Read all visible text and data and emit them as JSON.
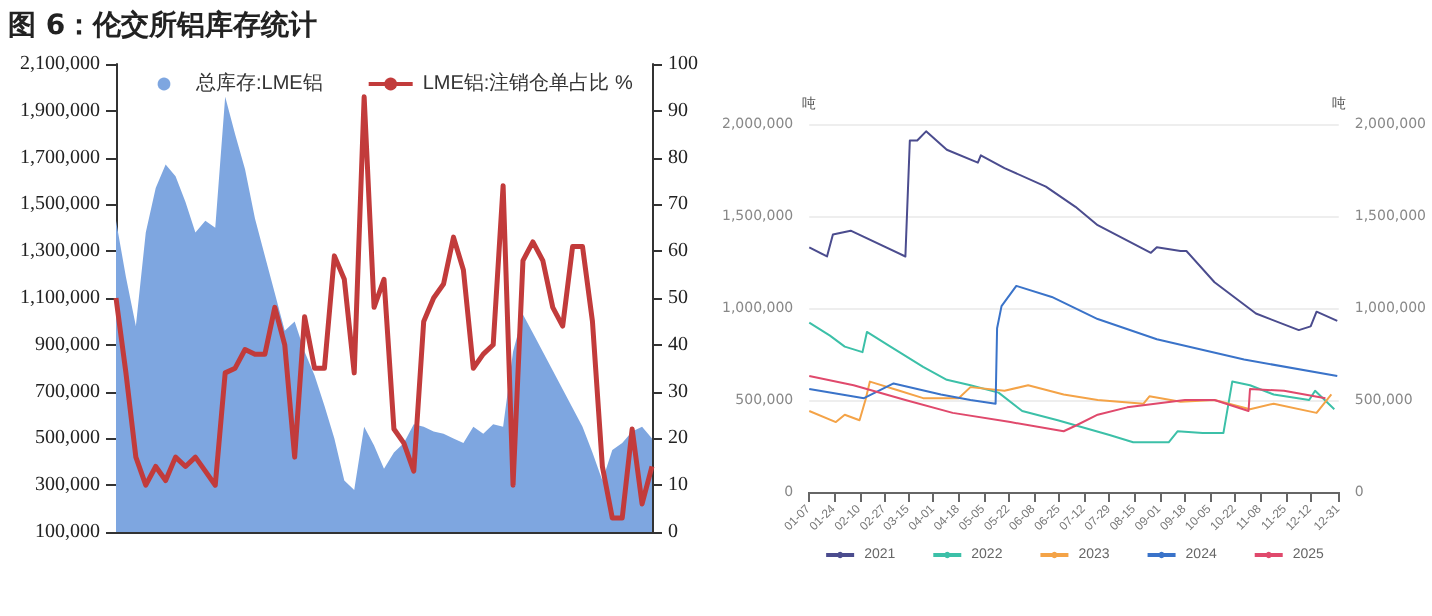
{
  "chart_data": [
    {
      "type": "area",
      "title": "图 6：伦交所铝库存统计",
      "categories": [
        null,
        null,
        null,
        null,
        null,
        null,
        null,
        null,
        null,
        null,
        null,
        null,
        null,
        null,
        null,
        null,
        null,
        null,
        null,
        null,
        null,
        null,
        null,
        null,
        null,
        null,
        null,
        null,
        null,
        null,
        null,
        null,
        null,
        null,
        null,
        null,
        null,
        null,
        null,
        null,
        null,
        null,
        null,
        null,
        null,
        null,
        null,
        null,
        null,
        null,
        null,
        null,
        null,
        null,
        null
      ],
      "series": [
        {
          "name": "总库存:LME铝",
          "color": "#7ea6e0",
          "values": [
            1430000,
            1190000,
            980000,
            1380000,
            1570000,
            1670000,
            1620000,
            1510000,
            1380000,
            1430000,
            1400000,
            1960000,
            1800000,
            1650000,
            1440000,
            1280000,
            1120000,
            960000,
            1000000,
            870000,
            770000,
            640000,
            500000,
            320000,
            280000,
            550000,
            470000,
            370000,
            440000,
            480000,
            560000,
            550000,
            530000,
            520000,
            500000,
            480000,
            550000,
            520000,
            560000,
            550000,
            870000,
            1030000,
            950000,
            870000,
            790000,
            710000,
            630000,
            550000,
            440000,
            320000,
            450000,
            480000,
            530000,
            550000,
            500000
          ]
        },
        {
          "name": "LME铝:注销仓单占比 %",
          "type": "line",
          "axis": "y2",
          "color": "#c23b3b",
          "values": [
            50,
            34,
            16,
            10,
            14,
            11,
            16,
            14,
            16,
            13,
            10,
            34,
            35,
            39,
            38,
            38,
            48,
            40,
            16,
            46,
            35,
            35,
            59,
            54,
            34,
            93,
            48,
            54,
            22,
            19,
            13,
            45,
            50,
            53,
            63,
            56,
            35,
            38,
            40,
            74,
            10,
            58,
            62,
            58,
            48,
            44,
            61,
            61,
            45,
            14,
            3,
            3,
            22,
            6,
            14
          ]
        }
      ],
      "ylim": [
        100000,
        2100000
      ],
      "yticks": [
        {
          "value": 100000,
          "label": "100,000"
        },
        {
          "value": 300000,
          "label": "300,000"
        },
        {
          "value": 500000,
          "label": "500,000"
        },
        {
          "value": 700000,
          "label": "700,000"
        },
        {
          "value": 900000,
          "label": "900,000"
        },
        {
          "value": 1100000,
          "label": "1,100,000"
        },
        {
          "value": 1300000,
          "label": "1,300,000"
        },
        {
          "value": 1500000,
          "label": "1,500,000"
        },
        {
          "value": 1700000,
          "label": "1,700,000"
        },
        {
          "value": 1900000,
          "label": "1,900,000"
        },
        {
          "value": 2100000,
          "label": "2,100,000"
        }
      ],
      "y2lim": [
        0,
        100
      ],
      "y2ticks": [
        0,
        10,
        20,
        30,
        40,
        50,
        60,
        70,
        80,
        90,
        100
      ],
      "grid": false,
      "legend": "top",
      "marker": "none"
    },
    {
      "type": "line",
      "ylabel": "吨",
      "y2label": "吨",
      "series": [
        {
          "name": "2021",
          "color": "#4b4c8e",
          "x": [
            "--01-07",
            "--01-19",
            "--01-23",
            "--02-04",
            "--03-13",
            "--03-16",
            "--03-21",
            "--03-27",
            "--04-10",
            "--05-01",
            "--05-03",
            "--05-19",
            "--06-16",
            "--07-06",
            "--07-21",
            "--08-26",
            "--08-30",
            "--09-15",
            "--09-19",
            "--10-08",
            "--11-05",
            "--12-04",
            "--12-12",
            "--12-16",
            "--12-30"
          ],
          "values": [
            1330000,
            1280000,
            1400000,
            1420000,
            1280000,
            1910000,
            1910000,
            1960000,
            1860000,
            1790000,
            1830000,
            1760000,
            1660000,
            1550000,
            1450000,
            1300000,
            1330000,
            1310000,
            1310000,
            1140000,
            970000,
            880000,
            900000,
            980000,
            930000
          ]
        },
        {
          "name": "2022",
          "color": "#3cc0a8",
          "x": [
            "--01-07",
            "--01-21",
            "--01-31",
            "--02-12",
            "--02-15",
            "--03-01",
            "--03-25",
            "--04-10",
            "--04-26",
            "--05-15",
            "--05-31",
            "--06-24",
            "--07-29",
            "--08-14",
            "--09-07",
            "--09-13",
            "--09-30",
            "--10-14",
            "--10-20",
            "--11-01",
            "--11-17",
            "--12-11",
            "--12-15",
            "--12-28"
          ],
          "values": [
            920000,
            850000,
            790000,
            760000,
            870000,
            800000,
            680000,
            610000,
            580000,
            540000,
            440000,
            390000,
            310000,
            270000,
            270000,
            330000,
            320000,
            320000,
            600000,
            580000,
            530000,
            500000,
            550000,
            450000
          ]
        },
        {
          "name": "2023",
          "color": "#f4a347",
          "x": [
            "--01-07",
            "--01-25",
            "--01-31",
            "--02-10",
            "--02-14",
            "--02-17",
            "--03-09",
            "--03-25",
            "--04-18",
            "--04-26",
            "--05-19",
            "--06-04",
            "--06-28",
            "--07-21",
            "--08-21",
            "--08-25",
            "--09-15",
            "--10-08",
            "--11-01",
            "--11-17",
            "--12-16",
            "--12-26"
          ],
          "values": [
            440000,
            380000,
            420000,
            390000,
            500000,
            600000,
            550000,
            510000,
            510000,
            570000,
            550000,
            580000,
            530000,
            500000,
            480000,
            520000,
            490000,
            500000,
            450000,
            480000,
            430000,
            530000
          ]
        },
        {
          "name": "2024",
          "color": "#3a73c9",
          "x": [
            "--01-07",
            "--02-13",
            "--03-05",
            "--04-06",
            "--04-26",
            "--05-13",
            "--05-14",
            "--05-17",
            "--05-27",
            "--06-20",
            "--07-21",
            "--08-30",
            "--10-28",
            "--12-30"
          ],
          "values": [
            560000,
            510000,
            590000,
            530000,
            500000,
            480000,
            890000,
            1010000,
            1120000,
            1060000,
            940000,
            830000,
            720000,
            630000
          ]
        },
        {
          "name": "2025",
          "color": "#e0496c",
          "x": [
            "--01-07",
            "--02-06",
            "--03-13",
            "--04-14",
            "--05-23",
            "--06-28",
            "--07-06",
            "--07-21",
            "--08-10",
            "--09-18",
            "--10-08",
            "--10-31",
            "--11-01",
            "--11-24",
            "--12-22"
          ],
          "values": [
            630000,
            580000,
            500000,
            430000,
            380000,
            330000,
            360000,
            420000,
            460000,
            500000,
            500000,
            440000,
            560000,
            550000,
            510000
          ]
        }
      ],
      "xlim": [
        "--01-07",
        "--12-31"
      ],
      "xticks": [
        {
          "value": "--01-07",
          "label": "01-07"
        },
        {
          "value": "--01-24",
          "label": "01-24"
        },
        {
          "value": "--02-10",
          "label": "02-10"
        },
        {
          "value": "--02-27",
          "label": "02-27"
        },
        {
          "value": "--03-15",
          "label": "03-15"
        },
        {
          "value": "--04-01",
          "label": "04-01"
        },
        {
          "value": "--04-18",
          "label": "04-18"
        },
        {
          "value": "--05-05",
          "label": "05-05"
        },
        {
          "value": "--05-22",
          "label": "05-22"
        },
        {
          "value": "--06-08",
          "label": "06-08"
        },
        {
          "value": "--06-25",
          "label": "06-25"
        },
        {
          "value": "--07-12",
          "label": "07-12"
        },
        {
          "value": "--07-29",
          "label": "07-29"
        },
        {
          "value": "--08-15",
          "label": "08-15"
        },
        {
          "value": "--09-01",
          "label": "09-01"
        },
        {
          "value": "--09-18",
          "label": "09-18"
        },
        {
          "value": "--10-05",
          "label": "10-05"
        },
        {
          "value": "--10-22",
          "label": "10-22"
        },
        {
          "value": "--11-08",
          "label": "11-08"
        },
        {
          "value": "--11-25",
          "label": "11-25"
        },
        {
          "value": "--12-12",
          "label": "12-12"
        },
        {
          "value": "--12-31",
          "label": "12-31"
        }
      ],
      "ylim": [
        0,
        2000000
      ],
      "yticks": [
        0,
        {
          "value": 500000,
          "label": "500,000"
        },
        {
          "value": 1000000,
          "label": "1,000,000"
        },
        {
          "value": 1500000,
          "label": "1,500,000"
        },
        {
          "value": 2000000,
          "label": "2,000,000"
        }
      ],
      "y2lim": [
        0,
        2000000
      ],
      "y2ticks": [
        0,
        {
          "value": 500000,
          "label": "500,000"
        },
        {
          "value": 1000000,
          "label": "1,000,000"
        },
        {
          "value": 1500000,
          "label": "1,500,000"
        },
        {
          "value": 2000000,
          "label": "2,000,000"
        }
      ],
      "grid": "y",
      "legend": "bottom",
      "marker": "none"
    }
  ]
}
